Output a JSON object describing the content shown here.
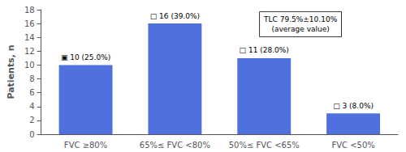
{
  "chart_data": {
    "type": "bar",
    "categories": [
      "FVC ≥80%",
      "65%≤ FVC <80%",
      "50%≤ FVC <65%",
      "FVC <50%"
    ],
    "values": [
      10,
      16,
      11,
      3
    ],
    "value_labels": [
      "▣ 10 (25.0%)",
      "□ 16 (39.0%)",
      "□ 11 (28.0%)",
      "□ 3 (8.0%)"
    ],
    "data_labels": true,
    "ylabel": "Patients, n",
    "ylim": [
      0,
      18
    ],
    "yticks": [
      0,
      2,
      4,
      6,
      8,
      10,
      12,
      14,
      16,
      18
    ],
    "annotation": "TLC 79.5%±10.10%\n(average value)",
    "grid": false
  }
}
